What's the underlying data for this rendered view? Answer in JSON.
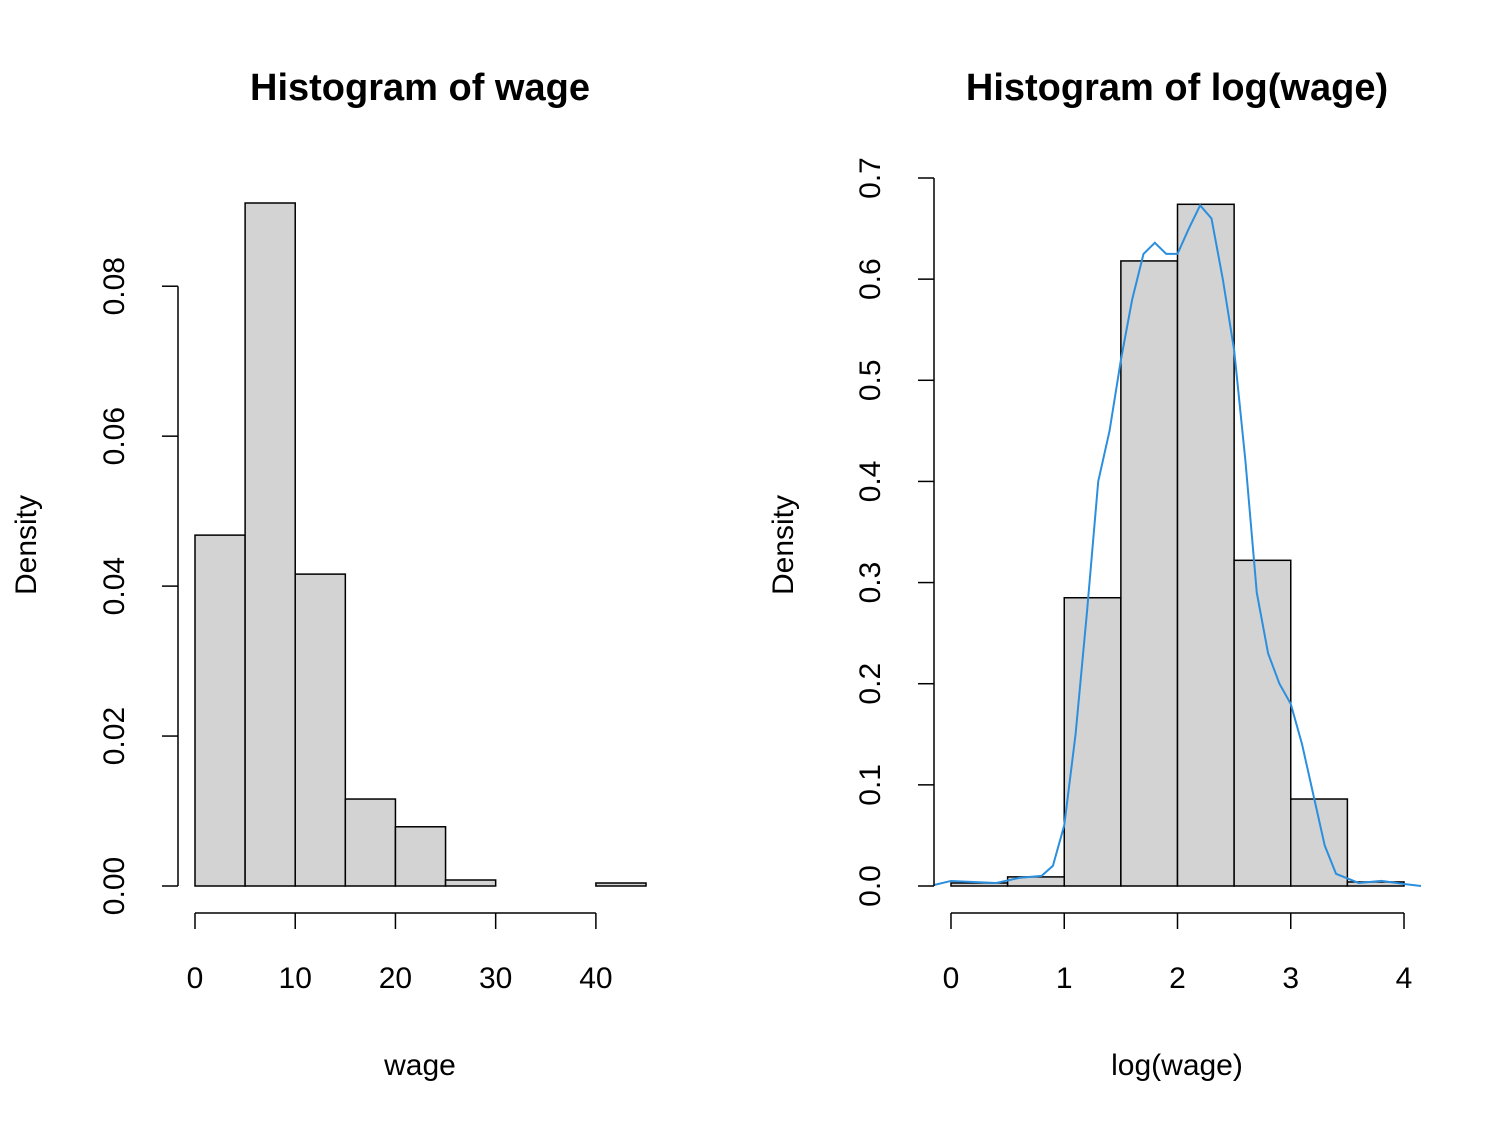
{
  "chart_data": [
    {
      "type": "histogram",
      "title": "Histogram of wage",
      "x_label": "wage",
      "y_label": "Density",
      "bins": [
        0,
        5,
        10,
        15,
        20,
        25,
        30,
        35,
        40,
        45
      ],
      "values": [
        0.0468,
        0.0911,
        0.0416,
        0.0116,
        0.0079,
        0.0008,
        0,
        0,
        0.0004
      ],
      "color": "#d3d3d3",
      "edge_color": "#000000",
      "xlim": [
        0,
        45
      ],
      "ylim": [
        0,
        0.0911
      ],
      "xticks": [
        0,
        10,
        20,
        30,
        40
      ],
      "yticks": [
        {
          "value": 0,
          "label": "0.00"
        },
        {
          "value": 0.02,
          "label": "0.02"
        },
        {
          "value": 0.04,
          "label": "0.04"
        },
        {
          "value": 0.06,
          "label": "0.06"
        },
        {
          "value": 0.08,
          "label": "0.08"
        }
      ]
    },
    {
      "type": "histogram",
      "title": "Histogram of log(wage)",
      "x_label": "log(wage)",
      "y_label": "Density",
      "bins": [
        0,
        0.5,
        1,
        1.5,
        2,
        2.5,
        3,
        3.5,
        4
      ],
      "values": [
        0.003,
        0.009,
        0.285,
        0.618,
        0.674,
        0.322,
        0.086,
        0.004
      ],
      "color": "#d3d3d3",
      "edge_color": "#000000",
      "line": {
        "color": "#2b8fde",
        "x": [
          -0.15,
          0,
          0.2,
          0.4,
          0.6,
          0.8,
          0.9,
          1.0,
          1.1,
          1.2,
          1.3,
          1.4,
          1.5,
          1.6,
          1.7,
          1.8,
          1.9,
          2.0,
          2.1,
          2.2,
          2.3,
          2.4,
          2.5,
          2.6,
          2.7,
          2.8,
          2.9,
          3.0,
          3.1,
          3.2,
          3.3,
          3.4,
          3.6,
          3.8,
          4.0,
          4.15
        ],
        "values": [
          0.001,
          0.005,
          0.004,
          0.003,
          0.008,
          0.01,
          0.02,
          0.06,
          0.15,
          0.27,
          0.4,
          0.45,
          0.52,
          0.58,
          0.625,
          0.636,
          0.625,
          0.625,
          0.65,
          0.673,
          0.66,
          0.6,
          0.53,
          0.42,
          0.29,
          0.23,
          0.2,
          0.18,
          0.14,
          0.09,
          0.04,
          0.012,
          0.003,
          0.005,
          0.002,
          0
        ]
      },
      "xlim": [
        -0.15,
        4.15
      ],
      "ylim": [
        0,
        0.7
      ],
      "xticks": [
        0,
        1,
        2,
        3,
        4
      ],
      "yticks": [
        {
          "value": 0,
          "label": "0.0"
        },
        {
          "value": 0.1,
          "label": "0.1"
        },
        {
          "value": 0.2,
          "label": "0.2"
        },
        {
          "value": 0.3,
          "label": "0.3"
        },
        {
          "value": 0.4,
          "label": "0.4"
        },
        {
          "value": 0.5,
          "label": "0.5"
        },
        {
          "value": 0.6,
          "label": "0.6"
        },
        {
          "value": 0.7,
          "label": "0.7"
        }
      ]
    }
  ]
}
